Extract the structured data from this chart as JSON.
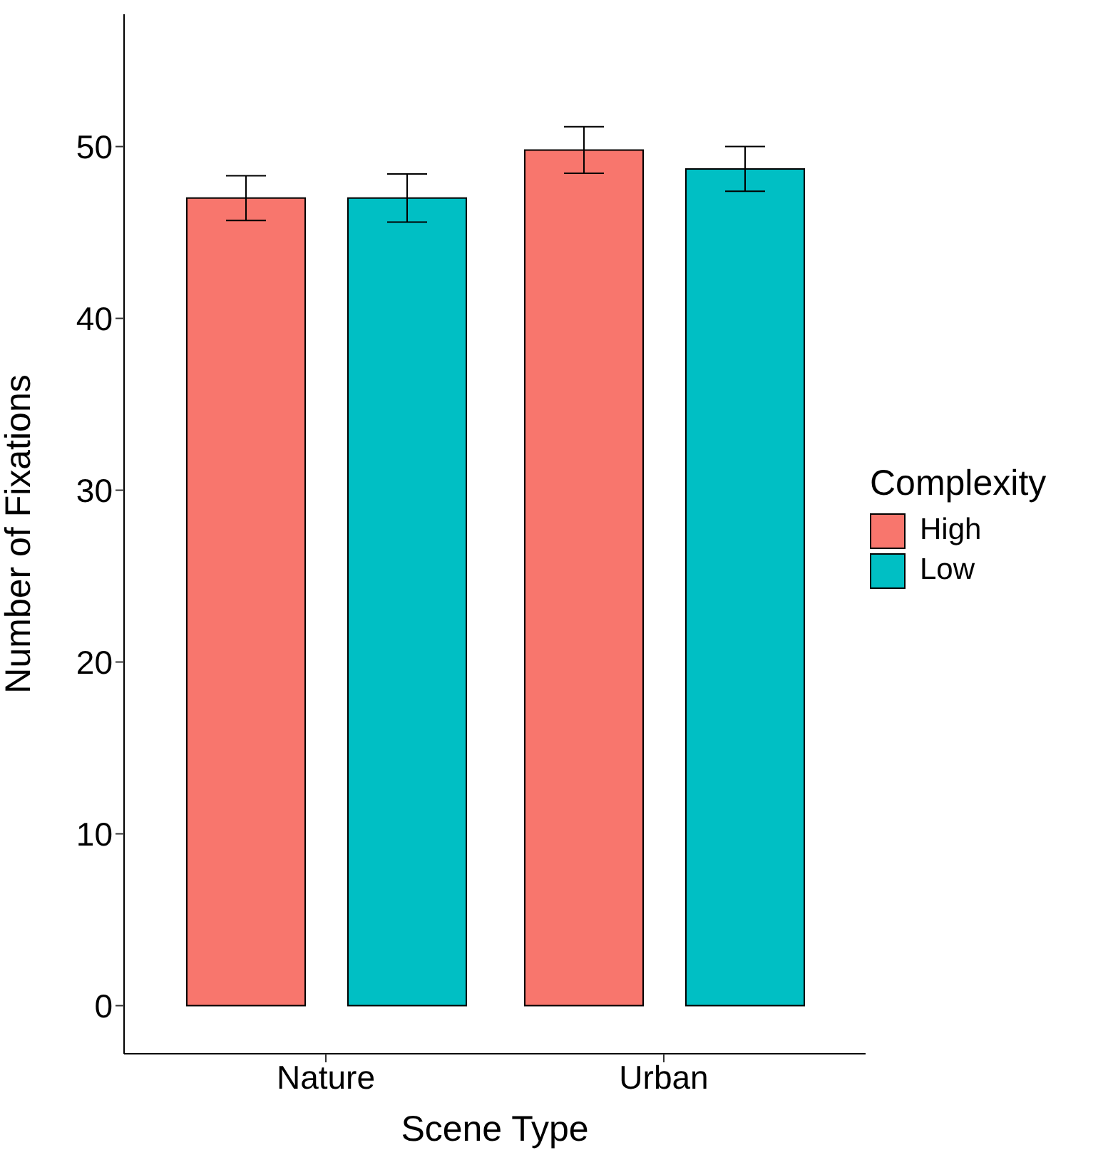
{
  "chart_data": {
    "type": "bar",
    "xlabel": "Scene Type",
    "ylabel": "Number of Fixations",
    "legend_title": "Complexity",
    "categories": [
      "Nature",
      "Urban"
    ],
    "series": [
      {
        "name": "High",
        "color": "#f8766d",
        "values": [
          47.0,
          49.8
        ],
        "errors": [
          1.3,
          1.35
        ]
      },
      {
        "name": "Low",
        "color": "#00bfc4",
        "values": [
          47.0,
          48.7
        ],
        "errors": [
          1.4,
          1.3
        ]
      }
    ],
    "ylim": [
      -2.8,
      57.7
    ],
    "yticks": [
      0,
      10,
      20,
      30,
      40,
      50
    ],
    "grid": false,
    "legend": "right"
  }
}
